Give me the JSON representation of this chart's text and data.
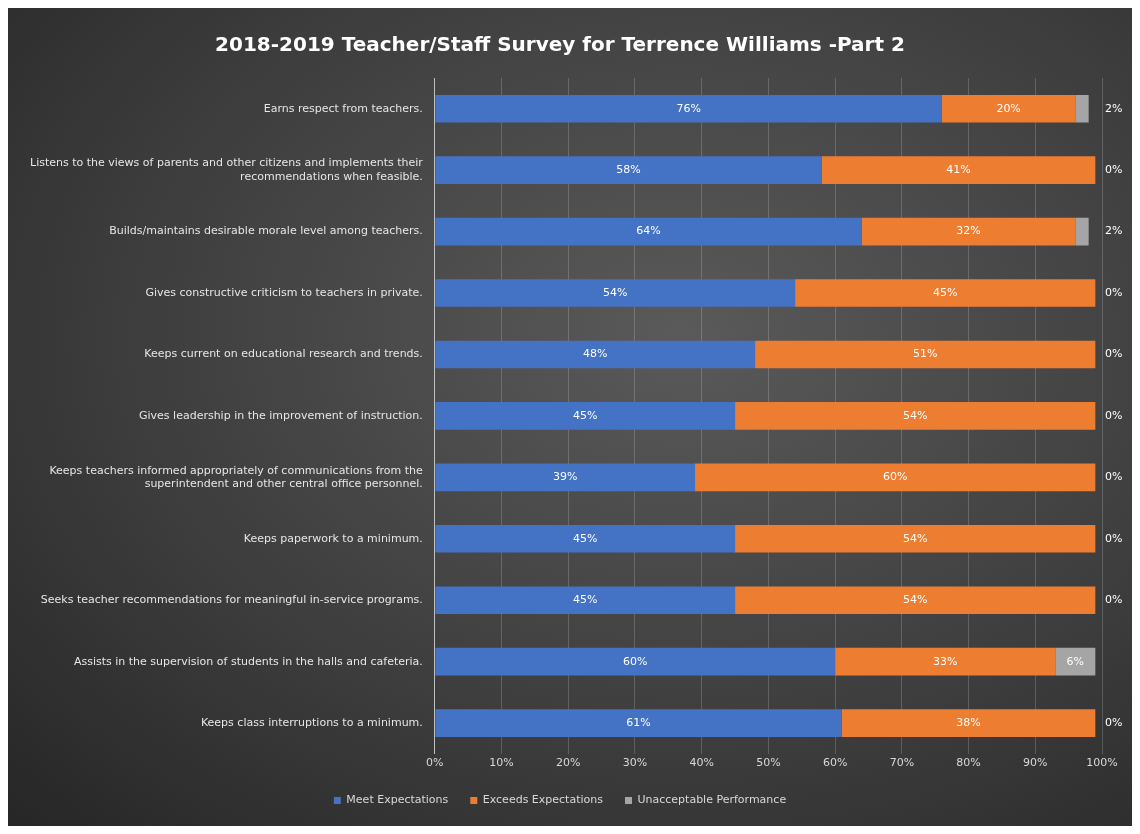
{
  "chart_data": {
    "type": "bar",
    "orientation": "horizontal",
    "stacked": true,
    "title": "2018-2019 Teacher/Staff Survey for Terrence Williams -Part 2",
    "categories": [
      "Earns respect from teachers.",
      "Listens to the views of parents and other citizens and implements their recommendations when feasible.",
      "Builds/maintains desirable morale level among teachers.",
      "Gives constructive criticism to teachers in private.",
      "Keeps current on educational research and trends.",
      "Gives leadership in the improvement of instruction.",
      "Keeps teachers informed appropriately of communications from the superintendent and other central office personnel.",
      "Keeps paperwork to a minimum.",
      "Seeks teacher recommendations for meaningful in-service programs.",
      "Assists in the supervision of students in the halls and cafeteria.",
      "Keeps class interruptions to a minimum."
    ],
    "series": [
      {
        "name": "Meet Expectations",
        "color": "#4472c4",
        "values": [
          76,
          58,
          64,
          54,
          48,
          45,
          39,
          45,
          45,
          60,
          61
        ],
        "value_labels": [
          "76%",
          "58%",
          "64%",
          "54%",
          "48%",
          "45%",
          "39%",
          "45%",
          "45%",
          "60%",
          "61%"
        ]
      },
      {
        "name": "Exceeds Expectations",
        "color": "#ed7d31",
        "values": [
          20,
          41,
          32,
          45,
          51,
          54,
          60,
          54,
          54,
          33,
          38
        ],
        "value_labels": [
          "20%",
          "41%",
          "32%",
          "45%",
          "51%",
          "54%",
          "60%",
          "54%",
          "54%",
          "33%",
          "38%"
        ]
      },
      {
        "name": "Unacceptable Performance",
        "color": "#a5a5a5",
        "values": [
          2,
          0,
          2,
          0,
          0,
          0,
          0,
          0,
          0,
          6,
          0
        ],
        "value_labels": [
          "2%",
          "0%",
          "2%",
          "0%",
          "0%",
          "0%",
          "0%",
          "0%",
          "0%",
          "6%",
          "0%"
        ]
      }
    ],
    "xlim": [
      0,
      100
    ],
    "xticks": [
      {
        "value": 0,
        "label": "0%"
      },
      {
        "value": 10,
        "label": "10%"
      },
      {
        "value": 20,
        "label": "20%"
      },
      {
        "value": 30,
        "label": "30%"
      },
      {
        "value": 40,
        "label": "40%"
      },
      {
        "value": 50,
        "label": "50%"
      },
      {
        "value": 60,
        "label": "60%"
      },
      {
        "value": 70,
        "label": "70%"
      },
      {
        "value": 80,
        "label": "80%"
      },
      {
        "value": 90,
        "label": "90%"
      },
      {
        "value": 100,
        "label": "100%"
      }
    ],
    "grid": "x",
    "legend": "bottom"
  }
}
